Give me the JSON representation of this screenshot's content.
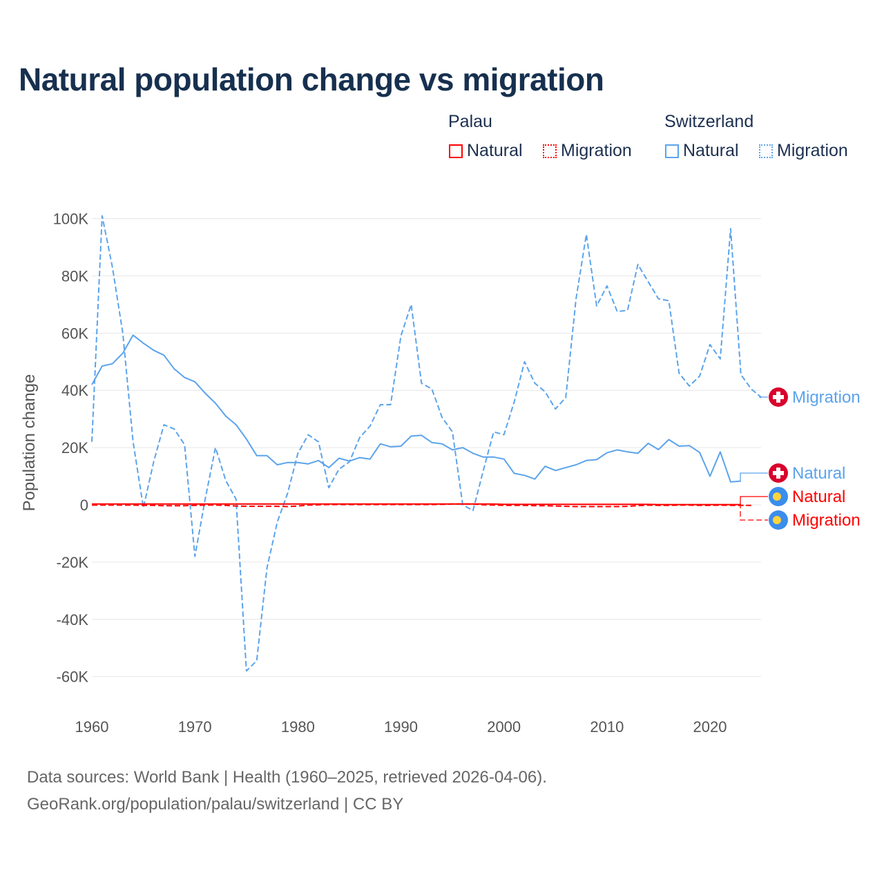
{
  "title": "Natural population change vs migration",
  "legend": {
    "groups": [
      {
        "name": "Palau",
        "items": [
          "Natural",
          "Migration"
        ]
      },
      {
        "name": "Switzerland",
        "items": [
          "Natural",
          "Migration"
        ]
      }
    ]
  },
  "footer": {
    "line1": "Data sources: World Bank | Health (1960–2025, retrieved 2026-04-06).",
    "line2": "GeoRank.org/population/palau/switzerland | CC BY"
  },
  "colors": {
    "palau": "#ff0000",
    "switzerland": "#5ba3ec",
    "grid": "#e6e6e6",
    "title": "#17304f"
  },
  "chart_data": {
    "type": "line",
    "title": "Natural population change vs migration",
    "xlabel": "",
    "ylabel": "Population change",
    "xlim": [
      1960,
      2025
    ],
    "ylim": [
      -70,
      105
    ],
    "x_ticks": [
      1960,
      1970,
      1980,
      1990,
      2000,
      2010,
      2020
    ],
    "x_tick_labels": [
      "1960",
      "1970",
      "1980",
      "1990",
      "2000",
      "2010",
      "2020"
    ],
    "y_ticks": [
      100,
      80,
      60,
      40,
      20,
      0,
      -20,
      -40,
      -60
    ],
    "y_tick_labels": [
      "100K",
      "80K",
      "60K",
      "40K",
      "20K",
      "0",
      "-20K",
      "-40K",
      "-60K"
    ],
    "units": "thousands",
    "grid": true,
    "legend_position": "top-right",
    "series": [
      {
        "name": "Switzerland Natural",
        "country": "Switzerland",
        "kind": "Natural",
        "color": "#5ba3ec",
        "dash": false,
        "start": 1960,
        "values": [
          42,
          48.5,
          49.3,
          53,
          59.3,
          56.5,
          54,
          52.3,
          47.5,
          44.5,
          43,
          39,
          35.5,
          31,
          28,
          23,
          17.2,
          17.2,
          14,
          14.8,
          14.8,
          14.3,
          15.5,
          13,
          16.3,
          15.3,
          16.5,
          16,
          21.3,
          20.3,
          20.5,
          24,
          24.3,
          21.8,
          21.3,
          19.2,
          20,
          18,
          16.7,
          16.7,
          16,
          11,
          10.3,
          9,
          13.5,
          12,
          13,
          14,
          15.5,
          15.8,
          18.2,
          19.2,
          18.5,
          18,
          21.5,
          19.3,
          22.8,
          20.5,
          20.7,
          18.3,
          10,
          18.5,
          8,
          8.3
        ]
      },
      {
        "name": "Switzerland Migration",
        "country": "Switzerland",
        "kind": "Migration",
        "color": "#5ba3ec",
        "dash": true,
        "start": 1960,
        "values": [
          22,
          101,
          83,
          60,
          22,
          -1,
          15,
          28,
          26.5,
          21,
          -18,
          2,
          20,
          8.5,
          2,
          -58,
          -54.5,
          -22,
          -6,
          4,
          18,
          24.5,
          22,
          6,
          12.5,
          15,
          23.5,
          27.5,
          35,
          35,
          59,
          70,
          42.5,
          40.5,
          30.5,
          25.5,
          0,
          -2,
          12,
          25.5,
          24.5,
          36,
          50,
          42.5,
          39.5,
          33.5,
          37.5,
          72,
          94.5,
          69.5,
          76.5,
          67.5,
          68,
          84,
          78,
          72,
          71.3,
          46,
          41.5,
          45,
          56,
          51,
          96.5,
          45.5,
          40.5,
          37.5
        ]
      },
      {
        "name": "Palau Natural",
        "country": "Palau",
        "kind": "Natural",
        "color": "#ff0000",
        "dash": false,
        "start": 1960,
        "values": [
          0.3,
          0.3,
          0.3,
          0.3,
          0.3,
          0.3,
          0.3,
          0.3,
          0.3,
          0.3,
          0.3,
          0.3,
          0.3,
          0.3,
          0.3,
          0.3,
          0.3,
          0.3,
          0.3,
          0.3,
          0.3,
          0.3,
          0.3,
          0.3,
          0.3,
          0.3,
          0.3,
          0.3,
          0.3,
          0.3,
          0.3,
          0.3,
          0.3,
          0.3,
          0.3,
          0.3,
          0.3,
          0.3,
          0.3,
          0.3,
          0.2,
          0.2,
          0.2,
          0.2,
          0.2,
          0.2,
          0.2,
          0.2,
          0.2,
          0.2,
          0.2,
          0.2,
          0.2,
          0.2,
          0.2,
          0.1,
          0.1,
          0.1,
          0.1,
          0.1,
          0.1,
          0.1,
          0.1,
          0.1
        ]
      },
      {
        "name": "Palau Migration",
        "country": "Palau",
        "kind": "Migration",
        "color": "#ff0000",
        "dash": true,
        "start": 1960,
        "values": [
          -0.1,
          -0.1,
          -0.1,
          -0.1,
          -0.1,
          -0.2,
          -0.2,
          -0.3,
          -0.3,
          -0.3,
          -0.2,
          -0.1,
          -0.1,
          -0.2,
          -0.4,
          -0.5,
          -0.5,
          -0.5,
          -0.5,
          -0.6,
          -0.4,
          -0.1,
          0,
          0.1,
          0.1,
          0.1,
          0.1,
          0.1,
          0.1,
          0.1,
          0.1,
          0.1,
          0.1,
          0.1,
          0.2,
          0.3,
          0.3,
          0.3,
          0,
          -0.1,
          -0.2,
          -0.2,
          -0.2,
          -0.3,
          -0.3,
          -0.4,
          -0.5,
          -0.6,
          -0.6,
          -0.6,
          -0.6,
          -0.6,
          -0.5,
          -0.3,
          -0.1,
          -0.2,
          -0.2,
          -0.1,
          -0.1,
          -0.2,
          -0.2,
          -0.1,
          -0.2,
          -0.2,
          -0.2
        ]
      }
    ],
    "end_labels": [
      {
        "text": "Migration",
        "series": 1,
        "icon": "switzerland-flag-icon"
      },
      {
        "text": "Natural",
        "series": 0,
        "icon": "switzerland-flag-icon"
      },
      {
        "text": "Natural",
        "series": 2,
        "icon": "palau-flag-icon"
      },
      {
        "text": "Migration",
        "series": 3,
        "icon": "palau-flag-icon"
      }
    ]
  }
}
